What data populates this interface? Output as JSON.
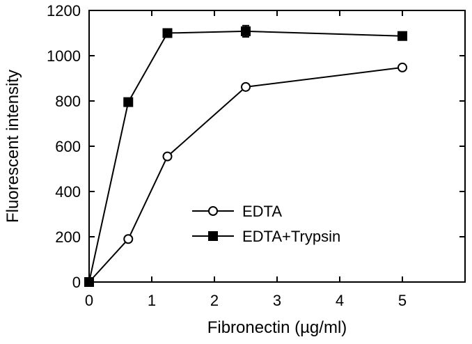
{
  "chart_data": {
    "type": "line",
    "title": "",
    "xlabel": "Fibronectin  (µg/ml)",
    "ylabel": "Fluorescent intensity",
    "xlim": [
      0,
      6
    ],
    "ylim": [
      0,
      1200
    ],
    "xticks": [
      "0",
      "1",
      "2",
      "3",
      "4",
      "5"
    ],
    "yticks": [
      "0",
      "200",
      "400",
      "600",
      "800",
      "1000",
      "1200"
    ],
    "grid": false,
    "legend_position": "lower-right",
    "series": [
      {
        "name": "EDTA",
        "marker": "open-circle",
        "color": "#000000",
        "x": [
          0,
          0.625,
          1.25,
          2.5,
          5
        ],
        "y": [
          0,
          190,
          555,
          862,
          948
        ],
        "yerr": [
          0,
          0,
          0,
          0,
          0
        ]
      },
      {
        "name": "EDTA+Trypsin",
        "marker": "filled-square",
        "color": "#000000",
        "x": [
          0,
          0.625,
          1.25,
          2.5,
          5
        ],
        "y": [
          0,
          795,
          1100,
          1108,
          1087
        ],
        "yerr": [
          0,
          0,
          0,
          25,
          0
        ]
      }
    ]
  }
}
